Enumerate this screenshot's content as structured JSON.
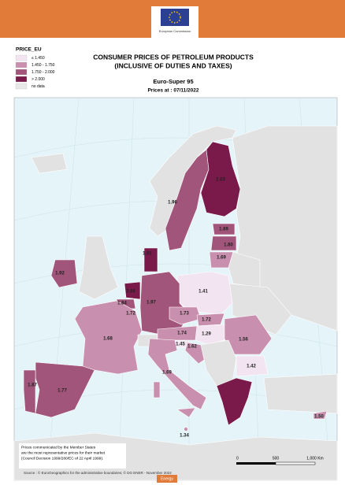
{
  "header": {
    "org": "European Commission"
  },
  "legend": {
    "title": "PRICE_EU",
    "items": [
      {
        "label": "≤ 1.450",
        "color": "#f3e4f1"
      },
      {
        "label": "1.450 - 1.750",
        "color": "#c98fae"
      },
      {
        "label": "1.750 - 2.000",
        "color": "#a2557a"
      },
      {
        "label": "> 2.000",
        "color": "#7a1a4b"
      },
      {
        "label": "no data",
        "color": "#e8e8e8"
      }
    ]
  },
  "title": {
    "line1": "CONSUMER PRICES OF PETROLEUM PRODUCTS",
    "line2": "(INCLUSIVE OF DUTIES AND TAXES)"
  },
  "product": "Euro-Super 95",
  "date": "Prices at : 07/11/2022",
  "countries": [
    {
      "value": "2.03"
    },
    {
      "value": "1.96"
    },
    {
      "value": "1.89"
    },
    {
      "value": "1.80"
    },
    {
      "value": "1.69"
    },
    {
      "value": "1.91"
    },
    {
      "value": "1.92"
    },
    {
      "value": "2.06"
    },
    {
      "value": "1.84"
    },
    {
      "value": "1.72"
    },
    {
      "value": "1.97"
    },
    {
      "value": "1.41"
    },
    {
      "value": "1.73"
    },
    {
      "value": "1.72"
    },
    {
      "value": "1.74"
    },
    {
      "value": "1.29"
    },
    {
      "value": "1.45"
    },
    {
      "value": "1.62"
    },
    {
      "value": "1.56"
    },
    {
      "value": "1.42"
    },
    {
      "value": "1.68"
    },
    {
      "value": "1.77"
    },
    {
      "value": "1.87"
    },
    {
      "value": "1.69"
    },
    {
      "value": "1.50"
    },
    {
      "value": "1.34"
    }
  ],
  "notes": {
    "lines": [
      "Prices communicated by the Member States",
      "are the most representative prices for their market",
      "(Council Decision 1999/280/EC of 22 April 1999)."
    ]
  },
  "source": "Source : © EuroGeographics for the administrative boundaries;  © DG ENER - November 2022",
  "scale": {
    "labels": [
      "0",
      "500",
      "1,000 Km"
    ]
  },
  "footer": "Energy"
}
